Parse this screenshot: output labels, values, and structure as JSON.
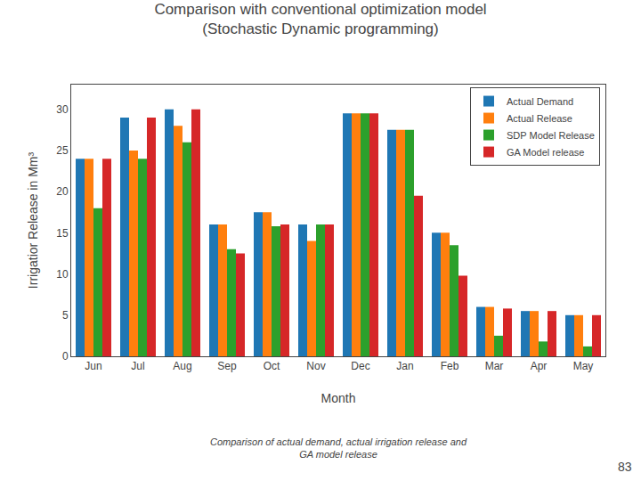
{
  "chart_data": {
    "type": "bar",
    "title": "Comparison with conventional optimization model\n(Stochastic Dynamic programming)",
    "xlabel": "Month",
    "ylabel": "Irrigatior Release in Mm³",
    "categories": [
      "Jun",
      "Jul",
      "Aug",
      "Sep",
      "Oct",
      "Nov",
      "Dec",
      "Jan",
      "Feb",
      "Mar",
      "Apr",
      "May"
    ],
    "series": [
      {
        "name": "Actual Demand",
        "values": [
          24,
          29,
          30,
          16,
          17.5,
          16,
          29.5,
          27.5,
          15,
          6,
          5.5,
          5
        ]
      },
      {
        "name": "Actual Release",
        "values": [
          24,
          25,
          28,
          16,
          17.5,
          14,
          29.5,
          27.5,
          15,
          6,
          5.5,
          5
        ]
      },
      {
        "name": "SDP Model Release",
        "values": [
          18,
          24,
          26,
          13,
          15.8,
          16,
          29.5,
          27.5,
          13.5,
          2.5,
          1.8,
          1.2
        ]
      },
      {
        "name": "GA Model release",
        "values": [
          24,
          29,
          30,
          12.5,
          16,
          16,
          29.5,
          19.5,
          9.8,
          5.8,
          5.5,
          5
        ]
      }
    ],
    "ylim": [
      0,
      33
    ],
    "yticks": [
      0,
      5,
      10,
      15,
      20,
      25,
      30
    ],
    "grid": false,
    "legend": "upper right",
    "annotations": [
      "Comparison of actual demand, actual irrigation release and\nGA model release",
      "83"
    ]
  }
}
